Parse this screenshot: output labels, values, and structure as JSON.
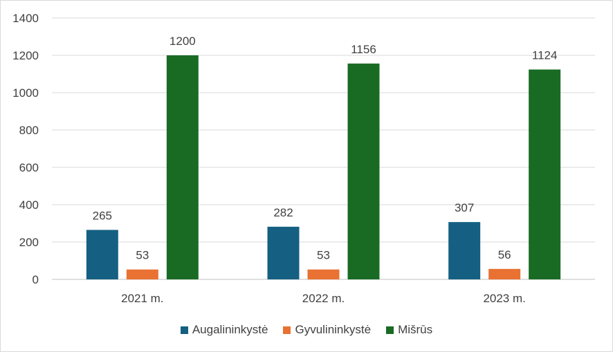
{
  "chart_data": {
    "type": "bar",
    "categories": [
      "2021 m.",
      "2022 m.",
      "2023 m."
    ],
    "series": [
      {
        "name": "Augalininkystė",
        "values": [
          265,
          282,
          307
        ],
        "color": "#156082"
      },
      {
        "name": "Gyvulininkystė",
        "values": [
          53,
          53,
          56
        ],
        "color": "#E97132"
      },
      {
        "name": "Mišrūs",
        "values": [
          1200,
          1156,
          1124
        ],
        "color": "#196B24"
      }
    ],
    "title": "",
    "xlabel": "",
    "ylabel": "",
    "ylim": [
      0,
      1400
    ],
    "yticks": [
      0,
      200,
      400,
      600,
      800,
      1000,
      1200,
      1400
    ],
    "grid": true,
    "legend": "bottom"
  }
}
